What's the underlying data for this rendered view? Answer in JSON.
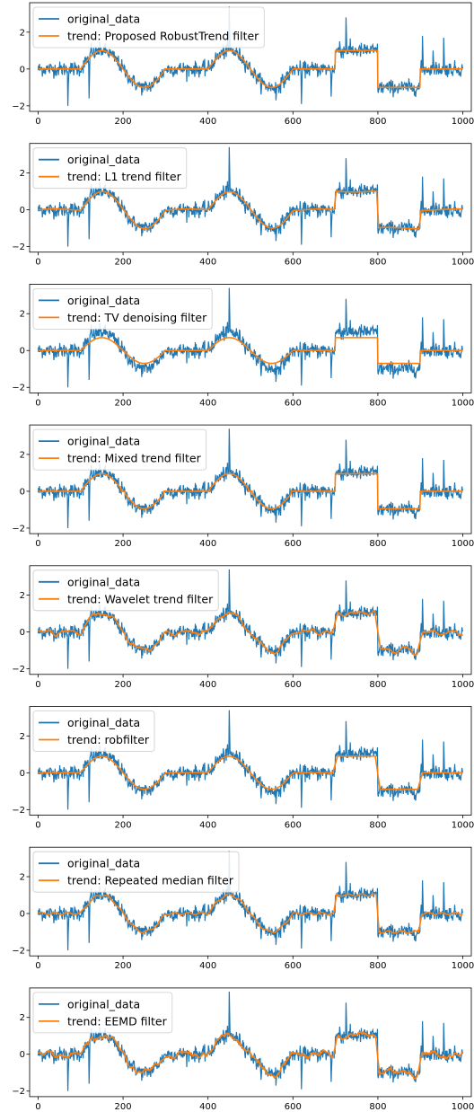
{
  "chart_data": [
    {
      "type": "line",
      "xlim": [
        -20,
        1020
      ],
      "ylim": [
        -2.3,
        3.6
      ],
      "xticks": [
        0,
        200,
        400,
        600,
        800,
        1000
      ],
      "yticks": [
        -2,
        0,
        2
      ],
      "grid": false,
      "legend_position": "top-left",
      "trend_model": "robust",
      "series": [
        {
          "name": "original_data",
          "color": "#1f77b4"
        },
        {
          "name": "trend: Proposed RobustTrend filter",
          "color": "#ff7f0e"
        }
      ]
    },
    {
      "type": "line",
      "xlim": [
        -20,
        1020
      ],
      "ylim": [
        -2.3,
        3.6
      ],
      "xticks": [
        0,
        200,
        400,
        600,
        800,
        1000
      ],
      "yticks": [
        -2,
        0,
        2
      ],
      "grid": false,
      "legend_position": "top-left",
      "trend_model": "l1",
      "series": [
        {
          "name": "original_data",
          "color": "#1f77b4"
        },
        {
          "name": "trend: L1 trend filter",
          "color": "#ff7f0e"
        }
      ]
    },
    {
      "type": "line",
      "xlim": [
        -20,
        1020
      ],
      "ylim": [
        -2.3,
        3.6
      ],
      "xticks": [
        0,
        200,
        400,
        600,
        800,
        1000
      ],
      "yticks": [
        -2,
        0,
        2
      ],
      "grid": false,
      "legend_position": "top-left",
      "trend_model": "tv",
      "series": [
        {
          "name": "original_data",
          "color": "#1f77b4"
        },
        {
          "name": "trend: TV denoising filter",
          "color": "#ff7f0e"
        }
      ]
    },
    {
      "type": "line",
      "xlim": [
        -20,
        1020
      ],
      "ylim": [
        -2.3,
        3.6
      ],
      "xticks": [
        0,
        200,
        400,
        600,
        800,
        1000
      ],
      "yticks": [
        -2,
        0,
        2
      ],
      "grid": false,
      "legend_position": "top-left",
      "trend_model": "mixed",
      "series": [
        {
          "name": "original_data",
          "color": "#1f77b4"
        },
        {
          "name": "trend: Mixed trend filter",
          "color": "#ff7f0e"
        }
      ]
    },
    {
      "type": "line",
      "xlim": [
        -20,
        1020
      ],
      "ylim": [
        -2.3,
        3.6
      ],
      "xticks": [
        0,
        200,
        400,
        600,
        800,
        1000
      ],
      "yticks": [
        -2,
        0,
        2
      ],
      "grid": false,
      "legend_position": "top-left",
      "trend_model": "wavelet",
      "series": [
        {
          "name": "original_data",
          "color": "#1f77b4"
        },
        {
          "name": "trend: Wavelet trend filter",
          "color": "#ff7f0e"
        }
      ]
    },
    {
      "type": "line",
      "xlim": [
        -20,
        1020
      ],
      "ylim": [
        -2.3,
        3.6
      ],
      "xticks": [
        0,
        200,
        400,
        600,
        800,
        1000
      ],
      "yticks": [
        -2,
        0,
        2
      ],
      "grid": false,
      "legend_position": "top-left",
      "trend_model": "robfilter",
      "series": [
        {
          "name": "original_data",
          "color": "#1f77b4"
        },
        {
          "name": "trend: robfilter",
          "color": "#ff7f0e"
        }
      ]
    },
    {
      "type": "line",
      "xlim": [
        -20,
        1020
      ],
      "ylim": [
        -2.3,
        3.6
      ],
      "xticks": [
        0,
        200,
        400,
        600,
        800,
        1000
      ],
      "yticks": [
        -2,
        0,
        2
      ],
      "grid": false,
      "legend_position": "top-left",
      "trend_model": "median",
      "series": [
        {
          "name": "original_data",
          "color": "#1f77b4"
        },
        {
          "name": "trend: Repeated median filter",
          "color": "#ff7f0e"
        }
      ]
    },
    {
      "type": "line",
      "xlim": [
        -20,
        1020
      ],
      "ylim": [
        -2.3,
        3.6
      ],
      "xticks": [
        0,
        200,
        400,
        600,
        800,
        1000
      ],
      "yticks": [
        -2,
        0,
        2
      ],
      "grid": false,
      "legend_position": "top-left",
      "trend_model": "eemd",
      "series": [
        {
          "name": "original_data",
          "color": "#1f77b4"
        },
        {
          "name": "trend: EEMD filter",
          "color": "#ff7f0e"
        }
      ]
    }
  ],
  "shared_signal": {
    "x_range": [
      0,
      1000
    ],
    "n_points": 1001,
    "noise_std": 0.2,
    "segments": [
      {
        "x": [
          0,
          100
        ],
        "form": "flat",
        "level": 0.0
      },
      {
        "x": [
          100,
          300
        ],
        "form": "sine",
        "amplitude": 1.0
      },
      {
        "x": [
          300,
          400
        ],
        "form": "flat",
        "level": 0.0
      },
      {
        "x": [
          400,
          600
        ],
        "form": "sine",
        "amplitude": 1.0
      },
      {
        "x": [
          600,
          700
        ],
        "form": "flat",
        "level": 0.0
      },
      {
        "x": [
          700,
          800
        ],
        "form": "flat",
        "level": 1.0
      },
      {
        "x": [
          800,
          900
        ],
        "form": "flat",
        "level": -1.0
      },
      {
        "x": [
          900,
          1000
        ],
        "form": "flat",
        "level": 0.0
      }
    ],
    "spikes": [
      {
        "x": 70,
        "value": -2.0
      },
      {
        "x": 120,
        "value": -1.6
      },
      {
        "x": 125,
        "value": 1.4
      },
      {
        "x": 450,
        "value": 3.4
      },
      {
        "x": 560,
        "value": -1.7
      },
      {
        "x": 620,
        "value": -1.9
      },
      {
        "x": 690,
        "value": -1.5
      },
      {
        "x": 710,
        "value": 1.5
      },
      {
        "x": 725,
        "value": 2.8
      },
      {
        "x": 905,
        "value": 1.8
      },
      {
        "x": 930,
        "value": 1.0
      },
      {
        "x": 955,
        "value": 1.7
      }
    ]
  }
}
